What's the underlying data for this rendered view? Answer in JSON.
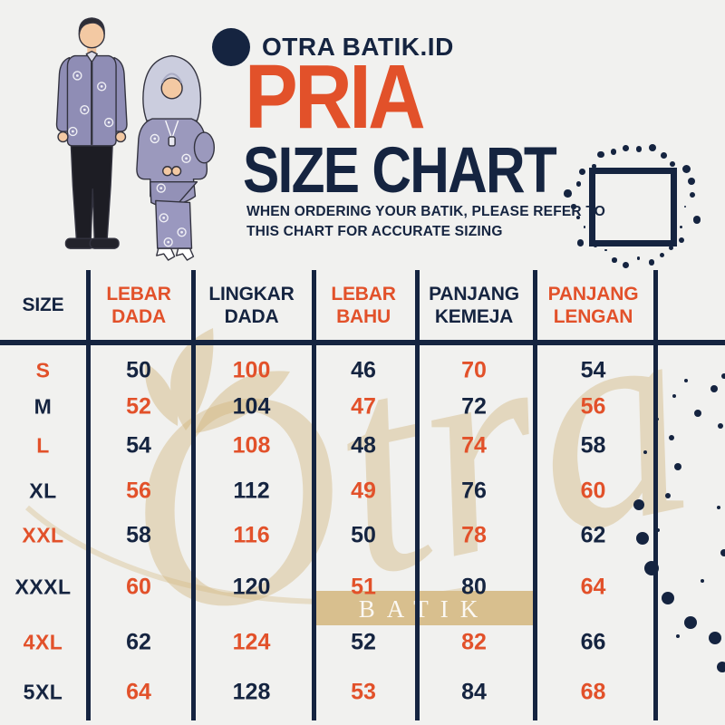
{
  "brand": {
    "name": "OTRA BATIK.ID"
  },
  "header": {
    "title": "PRIA",
    "subtitle": "SIZE CHART",
    "note_line1": "WHEN ORDERING YOUR BATIK, PLEASE REFER TO",
    "note_line2": "THIS CHART FOR ACCURATE SIZING"
  },
  "watermark": {
    "script": "Otra",
    "band_label": "BATIK"
  },
  "colors": {
    "navy": "#152440",
    "orange": "#E2512A",
    "background": "#F1F1EF",
    "gold_watermark": "#D8BF8E"
  },
  "illustration": {
    "description": "couple-in-purple-batik-outfits"
  },
  "size_table": {
    "columns": [
      "SIZE",
      "LEBAR DADA",
      "LINGKAR DADA",
      "LEBAR BAHU",
      "PANJANG KEMEJA",
      "PANJANG LENGAN"
    ],
    "rows": [
      {
        "size": "S",
        "values": [
          50,
          100,
          46,
          70,
          54
        ]
      },
      {
        "size": "M",
        "values": [
          52,
          104,
          47,
          72,
          56
        ]
      },
      {
        "size": "L",
        "values": [
          54,
          108,
          48,
          74,
          58
        ]
      },
      {
        "size": "XL",
        "values": [
          56,
          112,
          49,
          76,
          60
        ]
      },
      {
        "size": "XXL",
        "values": [
          58,
          116,
          50,
          78,
          62
        ]
      },
      {
        "size": "XXXL",
        "values": [
          60,
          120,
          51,
          80,
          64
        ]
      },
      {
        "size": "4XL",
        "values": [
          62,
          124,
          52,
          82,
          66
        ]
      },
      {
        "size": "5XL",
        "values": [
          64,
          128,
          53,
          84,
          68
        ]
      }
    ]
  }
}
